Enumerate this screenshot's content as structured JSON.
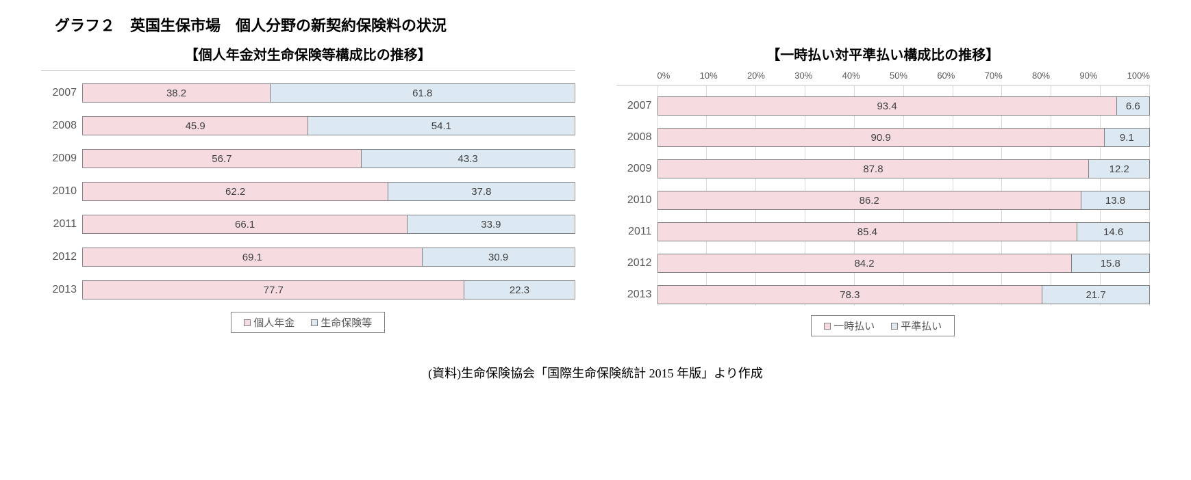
{
  "title": "グラフ２　英国生保市場　個人分野の新契約保険料の状況",
  "source_note": "(資料)生命保険協会「国際生命保険統計 2015 年版」より作成",
  "colors": {
    "series_a": "#f6dce0",
    "series_b": "#dde9f2",
    "bar_border": "#808080",
    "text": "#595959",
    "grid": "#d9d9d9"
  },
  "chart_left": {
    "subtitle": "【個人年金対生命保険等構成比の推移】",
    "type": "stacked-bar-horizontal",
    "categories": [
      "2007",
      "2008",
      "2009",
      "2010",
      "2011",
      "2012",
      "2013"
    ],
    "series": [
      {
        "name": "個人年金",
        "color": "#f6dce0",
        "values": [
          38.2,
          45.9,
          56.7,
          62.2,
          66.1,
          69.1,
          77.7
        ]
      },
      {
        "name": "生命保険等",
        "color": "#dde9f2",
        "values": [
          61.8,
          54.1,
          43.3,
          37.8,
          33.9,
          30.9,
          22.3
        ]
      }
    ],
    "xlim": [
      0,
      100
    ],
    "show_axis_ticks": false,
    "label_fontsize": 16,
    "value_fontsize": 15
  },
  "chart_right": {
    "subtitle": "【一時払い対平準払い構成比の推移】",
    "type": "stacked-bar-horizontal",
    "categories": [
      "2007",
      "2008",
      "2009",
      "2010",
      "2011",
      "2012",
      "2013"
    ],
    "series": [
      {
        "name": "一時払い",
        "color": "#f6dce0",
        "values": [
          93.4,
          90.9,
          87.8,
          86.2,
          85.4,
          84.2,
          78.3
        ]
      },
      {
        "name": "平準払い",
        "color": "#dde9f2",
        "values": [
          6.6,
          9.1,
          12.2,
          13.8,
          14.6,
          15.8,
          21.7
        ]
      }
    ],
    "xlim": [
      0,
      100
    ],
    "axis_ticks": [
      "0%",
      "10%",
      "20%",
      "30%",
      "40%",
      "50%",
      "60%",
      "70%",
      "80%",
      "90%",
      "100%"
    ],
    "label_fontsize": 16,
    "value_fontsize": 15
  }
}
